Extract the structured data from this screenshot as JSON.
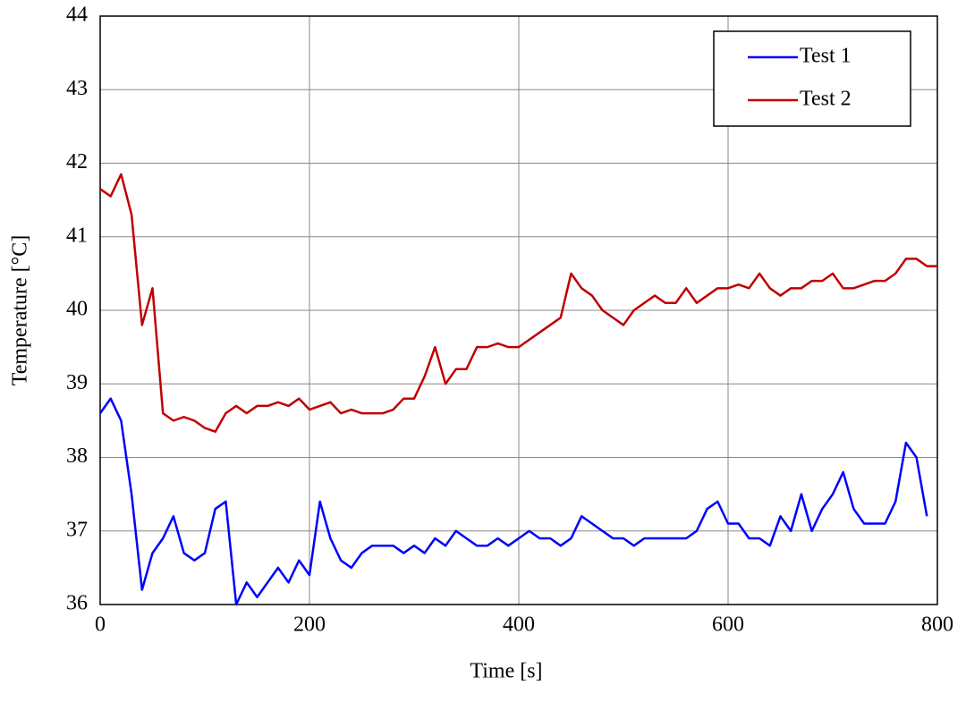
{
  "chart_data": {
    "type": "line",
    "x_label": "Time [s]",
    "y_label": "Temperature [°C]",
    "x": [
      0,
      10,
      20,
      30,
      40,
      50,
      60,
      70,
      80,
      90,
      100,
      110,
      120,
      130,
      140,
      150,
      160,
      170,
      180,
      190,
      200,
      210,
      220,
      230,
      240,
      250,
      260,
      270,
      280,
      290,
      300,
      310,
      320,
      330,
      340,
      350,
      360,
      370,
      380,
      390,
      400,
      410,
      420,
      430,
      440,
      450,
      460,
      470,
      480,
      490,
      500,
      510,
      520,
      530,
      540,
      550,
      560,
      570,
      580,
      590,
      600,
      610,
      620,
      630,
      640,
      650,
      660,
      670,
      680,
      690,
      700,
      710,
      720,
      730,
      740,
      750,
      760,
      770,
      780,
      790,
      800
    ],
    "series": [
      {
        "name": "Test 1",
        "color": "#0000ff",
        "values": [
          38.6,
          38.8,
          38.5,
          37.5,
          36.2,
          36.7,
          36.9,
          37.2,
          36.7,
          36.6,
          36.7,
          37.3,
          37.4,
          36.0,
          36.3,
          36.1,
          36.3,
          36.5,
          36.3,
          36.6,
          36.4,
          37.4,
          36.9,
          36.6,
          36.5,
          36.7,
          36.8,
          36.8,
          36.8,
          36.7,
          36.8,
          36.7,
          36.9,
          36.8,
          37.0,
          36.9,
          36.8,
          36.8,
          36.9,
          36.8,
          36.9,
          37.0,
          36.9,
          36.9,
          36.8,
          36.9,
          37.2,
          37.1,
          37.0,
          36.9,
          36.9,
          36.8,
          36.9,
          36.9,
          36.9,
          36.9,
          36.9,
          37.0,
          37.3,
          37.4,
          37.1,
          37.1,
          36.9,
          36.9,
          36.8,
          37.2,
          37.0,
          37.5,
          37.0,
          37.3,
          37.5,
          37.8,
          37.3,
          37.1,
          37.1,
          37.1,
          37.4,
          38.2,
          38.0,
          37.2,
          null
        ]
      },
      {
        "name": "Test 2",
        "color": "#c00000",
        "values": [
          41.65,
          41.55,
          41.85,
          41.3,
          39.8,
          40.3,
          38.6,
          38.5,
          38.55,
          38.5,
          38.4,
          38.35,
          38.6,
          38.7,
          38.6,
          38.7,
          38.7,
          38.75,
          38.7,
          38.8,
          38.65,
          38.7,
          38.75,
          38.6,
          38.65,
          38.6,
          38.6,
          38.6,
          38.65,
          38.8,
          38.8,
          39.1,
          39.5,
          39.0,
          39.2,
          39.2,
          39.5,
          39.5,
          39.55,
          39.5,
          39.5,
          39.6,
          39.7,
          39.8,
          39.9,
          40.5,
          40.3,
          40.2,
          40.0,
          39.9,
          39.8,
          40.0,
          40.1,
          40.2,
          40.1,
          40.1,
          40.3,
          40.1,
          40.2,
          40.3,
          40.3,
          40.35,
          40.3,
          40.5,
          40.3,
          40.2,
          40.3,
          40.3,
          40.4,
          40.4,
          40.5,
          40.3,
          40.3,
          40.35,
          40.4,
          40.4,
          40.5,
          40.7,
          40.7,
          40.6,
          40.6
        ]
      }
    ],
    "xlim": [
      0,
      800
    ],
    "xticks": [
      0,
      200,
      400,
      600,
      800
    ],
    "ylim": [
      36,
      44
    ],
    "yticks": [
      36,
      37,
      38,
      39,
      40,
      41,
      42,
      43,
      44
    ],
    "grid": true,
    "legend": "upper right"
  }
}
